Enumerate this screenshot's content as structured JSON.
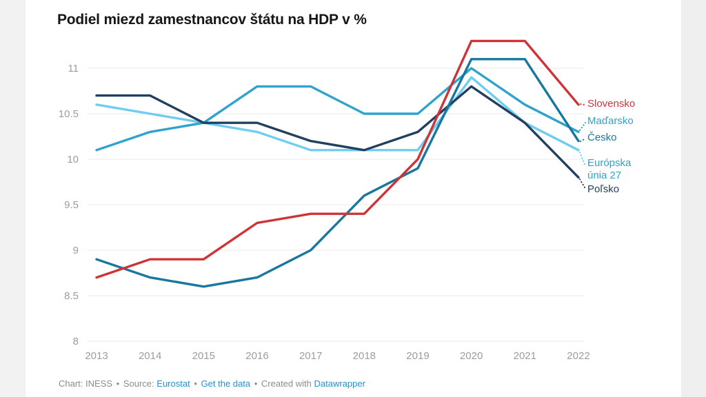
{
  "page": {
    "title": "Podiel miezd zamestnancov štátu na HDP v %"
  },
  "chart_data": {
    "type": "line",
    "title": "Podiel miezd zamestnancov štátu na HDP v %",
    "x": [
      2013,
      2014,
      2015,
      2016,
      2017,
      2018,
      2019,
      2020,
      2021,
      2022
    ],
    "series": [
      {
        "name": "Slovensko",
        "color": "#cf3337",
        "values": [
          8.7,
          8.9,
          8.9,
          9.3,
          9.4,
          9.4,
          10.0,
          11.3,
          11.3,
          10.6
        ]
      },
      {
        "name": "Maďarsko",
        "color": "#2fa3cb",
        "values": [
          10.1,
          10.3,
          10.4,
          10.8,
          10.8,
          10.5,
          10.5,
          11.0,
          10.6,
          10.3
        ]
      },
      {
        "name": "Česko",
        "color": "#18779f",
        "values": [
          8.9,
          8.7,
          8.6,
          8.7,
          9.0,
          9.6,
          9.9,
          11.1,
          11.1,
          10.2
        ]
      },
      {
        "name": "Európska únia 27",
        "color": "#6fcdf1",
        "values": [
          10.6,
          10.5,
          10.4,
          10.3,
          10.1,
          10.1,
          10.1,
          10.9,
          10.4,
          10.1
        ]
      },
      {
        "name": "Poľsko",
        "color": "#21405f",
        "values": [
          10.7,
          10.7,
          10.4,
          10.4,
          10.2,
          10.1,
          10.3,
          10.8,
          10.4,
          9.8
        ]
      }
    ],
    "yticks": [
      8,
      8.5,
      9,
      9.5,
      10,
      10.5,
      11
    ],
    "ylim": [
      8,
      11.3
    ],
    "grid": "horizontal",
    "legend_position": "right-of-lines",
    "axis_color": "#9c9c9c",
    "gridline_color": "#e8e8e8"
  },
  "footer": {
    "credit": "Chart: INESS",
    "bullet": "•",
    "source_label": "Source:",
    "source_link": "Eurostat",
    "get_data_link": "Get the data",
    "created_label": "Created with",
    "tool_link": "Datawrapper"
  }
}
